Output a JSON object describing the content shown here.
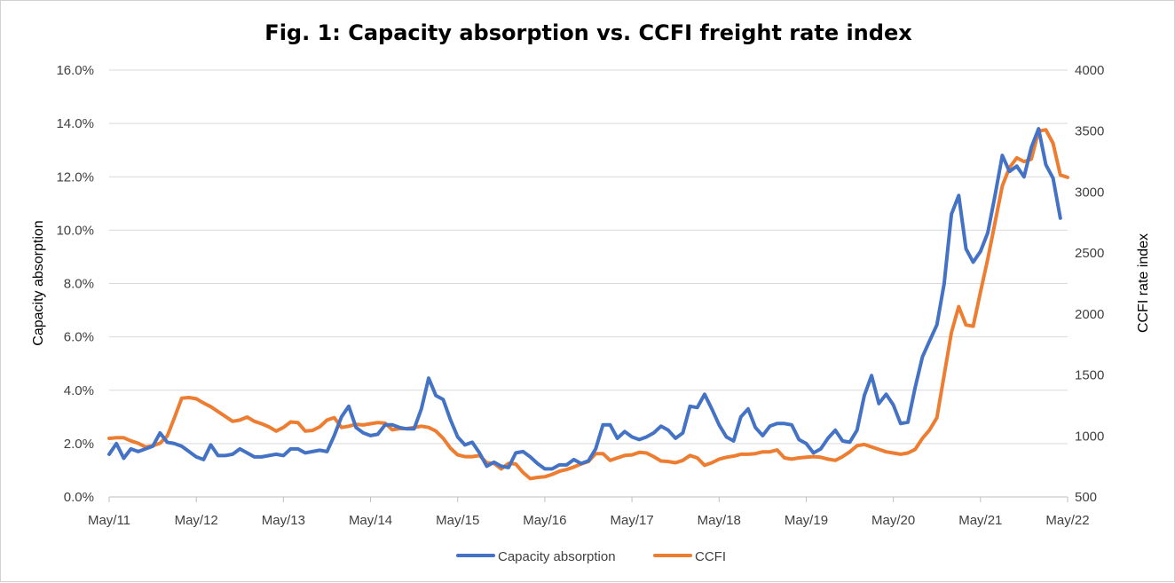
{
  "chart_data": {
    "type": "line",
    "title": "Fig. 1: Capacity absorption vs. CCFI freight rate index",
    "ylabel": "Capacity absorption",
    "y2label": "CCFI rate index",
    "xlabel": "",
    "x_ticks": [
      "May/11",
      "May/12",
      "May/13",
      "May/14",
      "May/15",
      "May/16",
      "May/17",
      "May/18",
      "May/19",
      "May/20",
      "May/21",
      "May/22"
    ],
    "y_ticks": [
      "0.0%",
      "2.0%",
      "4.0%",
      "6.0%",
      "8.0%",
      "10.0%",
      "12.0%",
      "14.0%",
      "16.0%"
    ],
    "y2_ticks": [
      "500",
      "1000",
      "1500",
      "2000",
      "2500",
      "3000",
      "3500",
      "4000"
    ],
    "ylim": [
      0,
      16
    ],
    "y2lim": [
      500,
      4000
    ],
    "x_range": [
      "May/11",
      "May/22"
    ],
    "grid": true,
    "legend_position": "bottom",
    "colors": {
      "capacity": "#4472C4",
      "ccfi": "#ED7D31"
    },
    "series": [
      {
        "name": "Capacity absorption",
        "axis": "left",
        "unit": "%",
        "points": [
          [
            "May/11",
            1.6
          ],
          [
            "Jun/11",
            2.0
          ],
          [
            "Jul/11",
            1.45
          ],
          [
            "Aug/11",
            1.8
          ],
          [
            "Sep/11",
            1.7
          ],
          [
            "Oct/11",
            1.8
          ],
          [
            "Nov/11",
            1.9
          ],
          [
            "Dec/11",
            2.4
          ],
          [
            "Jan/12",
            2.05
          ],
          [
            "Feb/12",
            2.0
          ],
          [
            "Mar/12",
            1.9
          ],
          [
            "Apr/12",
            1.7
          ],
          [
            "May/12",
            1.5
          ],
          [
            "Jun/12",
            1.4
          ],
          [
            "Jul/12",
            1.95
          ],
          [
            "Aug/12",
            1.55
          ],
          [
            "Sep/12",
            1.55
          ],
          [
            "Oct/12",
            1.6
          ],
          [
            "Nov/12",
            1.8
          ],
          [
            "Dec/12",
            1.65
          ],
          [
            "Jan/13",
            1.5
          ],
          [
            "Feb/13",
            1.5
          ],
          [
            "Mar/13",
            1.55
          ],
          [
            "Apr/13",
            1.6
          ],
          [
            "May/13",
            1.55
          ],
          [
            "Jun/13",
            1.8
          ],
          [
            "Jul/13",
            1.8
          ],
          [
            "Aug/13",
            1.65
          ],
          [
            "Sep/13",
            1.7
          ],
          [
            "Oct/13",
            1.75
          ],
          [
            "Nov/13",
            1.7
          ],
          [
            "Dec/13",
            2.3
          ],
          [
            "Jan/14",
            3.0
          ],
          [
            "Feb/14",
            3.4
          ],
          [
            "Mar/14",
            2.6
          ],
          [
            "Apr/14",
            2.4
          ],
          [
            "May/14",
            2.3
          ],
          [
            "Jun/14",
            2.35
          ],
          [
            "Jul/14",
            2.7
          ],
          [
            "Aug/14",
            2.7
          ],
          [
            "Sep/14",
            2.6
          ],
          [
            "Oct/14",
            2.55
          ],
          [
            "Nov/14",
            2.55
          ],
          [
            "Dec/14",
            3.3
          ],
          [
            "Jan/15",
            4.45
          ],
          [
            "Feb/15",
            3.8
          ],
          [
            "Mar/15",
            3.65
          ],
          [
            "Apr/15",
            2.9
          ],
          [
            "May/15",
            2.25
          ],
          [
            "Jun/15",
            1.95
          ],
          [
            "Jul/15",
            2.05
          ],
          [
            "Aug/15",
            1.65
          ],
          [
            "Sep/15",
            1.15
          ],
          [
            "Oct/15",
            1.3
          ],
          [
            "Nov/15",
            1.15
          ],
          [
            "Dec/15",
            1.1
          ],
          [
            "Jan/16",
            1.65
          ],
          [
            "Feb/16",
            1.7
          ],
          [
            "Mar/16",
            1.5
          ],
          [
            "Apr/16",
            1.25
          ],
          [
            "May/16",
            1.05
          ],
          [
            "Jun/16",
            1.05
          ],
          [
            "Jul/16",
            1.2
          ],
          [
            "Aug/16",
            1.2
          ],
          [
            "Sep/16",
            1.4
          ],
          [
            "Oct/16",
            1.25
          ],
          [
            "Nov/16",
            1.35
          ],
          [
            "Dec/16",
            1.8
          ],
          [
            "Jan/17",
            2.7
          ],
          [
            "Feb/17",
            2.7
          ],
          [
            "Mar/17",
            2.2
          ],
          [
            "Apr/17",
            2.45
          ],
          [
            "May/17",
            2.25
          ],
          [
            "Jun/17",
            2.15
          ],
          [
            "Jul/17",
            2.25
          ],
          [
            "Aug/17",
            2.4
          ],
          [
            "Sep/17",
            2.65
          ],
          [
            "Oct/17",
            2.5
          ],
          [
            "Nov/17",
            2.2
          ],
          [
            "Dec/17",
            2.4
          ],
          [
            "Jan/18",
            3.4
          ],
          [
            "Feb/18",
            3.35
          ],
          [
            "Mar/18",
            3.85
          ],
          [
            "Apr/18",
            3.3
          ],
          [
            "May/18",
            2.7
          ],
          [
            "Jun/18",
            2.25
          ],
          [
            "Jul/18",
            2.1
          ],
          [
            "Aug/18",
            3.0
          ],
          [
            "Sep/18",
            3.3
          ],
          [
            "Oct/18",
            2.6
          ],
          [
            "Nov/18",
            2.3
          ],
          [
            "Dec/18",
            2.65
          ],
          [
            "Jan/19",
            2.75
          ],
          [
            "Feb/19",
            2.75
          ],
          [
            "Mar/19",
            2.7
          ],
          [
            "Apr/19",
            2.15
          ],
          [
            "May/19",
            2.0
          ],
          [
            "Jun/19",
            1.65
          ],
          [
            "Jul/19",
            1.8
          ],
          [
            "Aug/19",
            2.2
          ],
          [
            "Sep/19",
            2.5
          ],
          [
            "Oct/19",
            2.1
          ],
          [
            "Nov/19",
            2.05
          ],
          [
            "Dec/19",
            2.5
          ],
          [
            "Jan/20",
            3.8
          ],
          [
            "Feb/20",
            4.55
          ],
          [
            "Mar/20",
            3.5
          ],
          [
            "Apr/20",
            3.85
          ],
          [
            "May/20",
            3.45
          ],
          [
            "Jun/20",
            2.75
          ],
          [
            "Jul/20",
            2.8
          ],
          [
            "Aug/20",
            4.1
          ],
          [
            "Sep/20",
            5.25
          ],
          [
            "Oct/20",
            5.85
          ],
          [
            "Nov/20",
            6.45
          ],
          [
            "Dec/20",
            8.0
          ],
          [
            "Jan/21",
            10.6
          ],
          [
            "Feb/21",
            11.3
          ],
          [
            "Mar/21",
            9.3
          ],
          [
            "Apr/21",
            8.8
          ],
          [
            "May/21",
            9.2
          ],
          [
            "Jun/21",
            9.9
          ],
          [
            "Jul/21",
            11.3
          ],
          [
            "Aug/21",
            12.8
          ],
          [
            "Sep/21",
            12.2
          ],
          [
            "Oct/21",
            12.4
          ],
          [
            "Nov/21",
            12.0
          ],
          [
            "Dec/21",
            13.1
          ],
          [
            "Jan/22",
            13.8
          ],
          [
            "Feb/22",
            12.45
          ],
          [
            "Mar/22",
            11.95
          ],
          [
            "Apr/22",
            10.45
          ]
        ]
      },
      {
        "name": "CCFI",
        "axis": "right",
        "unit": "index",
        "points": [
          [
            "May/11",
            980
          ],
          [
            "Jun/11",
            985
          ],
          [
            "Jul/11",
            985
          ],
          [
            "Aug/11",
            960
          ],
          [
            "Sep/11",
            940
          ],
          [
            "Oct/11",
            910
          ],
          [
            "Nov/11",
            920
          ],
          [
            "Dec/11",
            940
          ],
          [
            "Jan/12",
            1000
          ],
          [
            "Feb/12",
            1150
          ],
          [
            "Mar/12",
            1310
          ],
          [
            "Apr/12",
            1315
          ],
          [
            "May/12",
            1305
          ],
          [
            "Jun/12",
            1270
          ],
          [
            "Jul/12",
            1240
          ],
          [
            "Aug/12",
            1200
          ],
          [
            "Sep/12",
            1160
          ],
          [
            "Oct/12",
            1120
          ],
          [
            "Nov/12",
            1130
          ],
          [
            "Dec/12",
            1155
          ],
          [
            "Jan/13",
            1120
          ],
          [
            "Feb/13",
            1100
          ],
          [
            "Mar/13",
            1075
          ],
          [
            "Apr/13",
            1040
          ],
          [
            "May/13",
            1070
          ],
          [
            "Jun/13",
            1115
          ],
          [
            "Jul/13",
            1110
          ],
          [
            "Aug/13",
            1040
          ],
          [
            "Sep/13",
            1045
          ],
          [
            "Oct/13",
            1075
          ],
          [
            "Nov/13",
            1130
          ],
          [
            "Dec/13",
            1150
          ],
          [
            "Jan/14",
            1070
          ],
          [
            "Feb/14",
            1080
          ],
          [
            "Mar/14",
            1095
          ],
          [
            "Apr/14",
            1090
          ],
          [
            "May/14",
            1100
          ],
          [
            "Jun/14",
            1110
          ],
          [
            "Jul/14",
            1105
          ],
          [
            "Aug/14",
            1050
          ],
          [
            "Sep/14",
            1060
          ],
          [
            "Oct/14",
            1060
          ],
          [
            "Nov/14",
            1070
          ],
          [
            "Dec/14",
            1080
          ],
          [
            "Jan/15",
            1070
          ],
          [
            "Feb/15",
            1040
          ],
          [
            "Mar/15",
            980
          ],
          [
            "Apr/15",
            900
          ],
          [
            "May/15",
            845
          ],
          [
            "Jun/15",
            830
          ],
          [
            "Jul/15",
            830
          ],
          [
            "Aug/15",
            840
          ],
          [
            "Sep/15",
            780
          ],
          [
            "Oct/15",
            775
          ],
          [
            "Nov/15",
            730
          ],
          [
            "Dec/15",
            775
          ],
          [
            "Jan/16",
            770
          ],
          [
            "Feb/16",
            700
          ],
          [
            "Mar/16",
            650
          ],
          [
            "Apr/16",
            660
          ],
          [
            "May/16",
            665
          ],
          [
            "Jun/16",
            685
          ],
          [
            "Jul/16",
            710
          ],
          [
            "Aug/16",
            725
          ],
          [
            "Sep/16",
            745
          ],
          [
            "Oct/16",
            770
          ],
          [
            "Nov/16",
            790
          ],
          [
            "Dec/16",
            855
          ],
          [
            "Jan/17",
            855
          ],
          [
            "Feb/17",
            800
          ],
          [
            "Mar/17",
            820
          ],
          [
            "Apr/17",
            840
          ],
          [
            "May/17",
            845
          ],
          [
            "Jun/17",
            865
          ],
          [
            "Jul/17",
            860
          ],
          [
            "Aug/17",
            830
          ],
          [
            "Sep/17",
            795
          ],
          [
            "Oct/17",
            790
          ],
          [
            "Nov/17",
            780
          ],
          [
            "Dec/17",
            800
          ],
          [
            "Jan/18",
            840
          ],
          [
            "Feb/18",
            820
          ],
          [
            "Mar/18",
            760
          ],
          [
            "Apr/18",
            780
          ],
          [
            "May/18",
            810
          ],
          [
            "Jun/18",
            825
          ],
          [
            "Jul/18",
            835
          ],
          [
            "Aug/18",
            850
          ],
          [
            "Sep/18",
            850
          ],
          [
            "Oct/18",
            855
          ],
          [
            "Nov/18",
            870
          ],
          [
            "Dec/18",
            870
          ],
          [
            "Jan/19",
            885
          ],
          [
            "Feb/19",
            820
          ],
          [
            "Mar/19",
            810
          ],
          [
            "Apr/19",
            820
          ],
          [
            "May/19",
            825
          ],
          [
            "Jun/19",
            830
          ],
          [
            "Jul/19",
            825
          ],
          [
            "Aug/19",
            810
          ],
          [
            "Sep/19",
            800
          ],
          [
            "Oct/19",
            830
          ],
          [
            "Nov/19",
            870
          ],
          [
            "Dec/19",
            920
          ],
          [
            "Jan/20",
            930
          ],
          [
            "Feb/20",
            910
          ],
          [
            "Mar/20",
            890
          ],
          [
            "Apr/20",
            870
          ],
          [
            "May/20",
            860
          ],
          [
            "Jun/20",
            850
          ],
          [
            "Jul/20",
            860
          ],
          [
            "Aug/20",
            890
          ],
          [
            "Sep/20",
            980
          ],
          [
            "Oct/20",
            1050
          ],
          [
            "Nov/20",
            1150
          ],
          [
            "Dec/20",
            1500
          ],
          [
            "Jan/21",
            1850
          ],
          [
            "Feb/21",
            2060
          ],
          [
            "Mar/21",
            1910
          ],
          [
            "Apr/21",
            1900
          ],
          [
            "May/21",
            2180
          ],
          [
            "Jun/21",
            2450
          ],
          [
            "Jul/21",
            2750
          ],
          [
            "Aug/21",
            3050
          ],
          [
            "Sep/21",
            3200
          ],
          [
            "Oct/21",
            3280
          ],
          [
            "Nov/21",
            3250
          ],
          [
            "Dec/21",
            3270
          ],
          [
            "Jan/22",
            3500
          ],
          [
            "Feb/22",
            3510
          ],
          [
            "Mar/22",
            3400
          ],
          [
            "Apr/22",
            3140
          ],
          [
            "May/22",
            3120
          ]
        ]
      }
    ]
  }
}
